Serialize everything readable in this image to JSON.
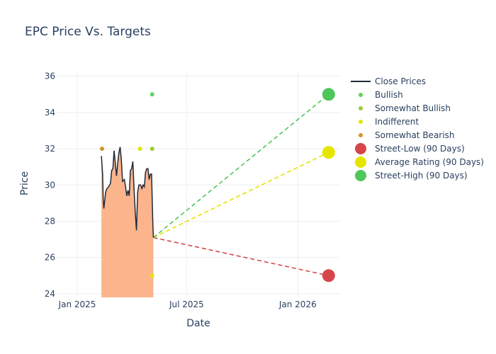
{
  "chart_data": {
    "type": "line",
    "title": "EPC Price Vs. Targets",
    "xlabel": "Date",
    "ylabel": "Price",
    "xlim": [
      "2024-11-28",
      "2026-03-12"
    ],
    "ylim": [
      23.8,
      36.3
    ],
    "x_ticks": [
      {
        "date": "2025-01-01",
        "label": "Jan 2025"
      },
      {
        "date": "2025-07-01",
        "label": "Jul 2025"
      },
      {
        "date": "2026-01-01",
        "label": "Jan 2026"
      }
    ],
    "y_ticks": [
      24,
      26,
      28,
      30,
      32,
      34,
      36
    ],
    "grid": true,
    "legend_position": "top-right",
    "close_prices": {
      "name": "Close Prices",
      "color": "#1f2a3a",
      "fill_color": "#fbb48c",
      "points": [
        [
          "2025-02-10",
          31.6
        ],
        [
          "2025-02-12",
          30.6
        ],
        [
          "2025-02-13",
          29.2
        ],
        [
          "2025-02-14",
          28.7
        ],
        [
          "2025-02-17",
          29.6
        ],
        [
          "2025-02-19",
          29.8
        ],
        [
          "2025-02-22",
          29.9
        ],
        [
          "2025-02-25",
          30.1
        ],
        [
          "2025-02-27",
          30.8
        ],
        [
          "2025-03-01",
          30.9
        ],
        [
          "2025-03-03",
          31.9
        ],
        [
          "2025-03-05",
          31.2
        ],
        [
          "2025-03-07",
          30.5
        ],
        [
          "2025-03-09",
          31.2
        ],
        [
          "2025-03-11",
          31.8
        ],
        [
          "2025-03-13",
          32.1
        ],
        [
          "2025-03-15",
          31.4
        ],
        [
          "2025-03-17",
          30.2
        ],
        [
          "2025-03-20",
          30.3
        ],
        [
          "2025-03-22",
          29.9
        ],
        [
          "2025-03-24",
          29.4
        ],
        [
          "2025-03-26",
          29.7
        ],
        [
          "2025-03-28",
          29.4
        ],
        [
          "2025-03-30",
          30.8
        ],
        [
          "2025-04-01",
          30.9
        ],
        [
          "2025-04-03",
          31.3
        ],
        [
          "2025-04-05",
          29.8
        ],
        [
          "2025-04-07",
          28.5
        ],
        [
          "2025-04-09",
          27.5
        ],
        [
          "2025-04-11",
          29.6
        ],
        [
          "2025-04-13",
          30.0
        ],
        [
          "2025-04-16",
          30.0
        ],
        [
          "2025-04-18",
          29.8
        ],
        [
          "2025-04-20",
          30.0
        ],
        [
          "2025-04-22",
          29.9
        ],
        [
          "2025-04-24",
          30.7
        ],
        [
          "2025-04-26",
          30.9
        ],
        [
          "2025-04-28",
          30.9
        ],
        [
          "2025-04-30",
          30.3
        ],
        [
          "2025-05-02",
          30.6
        ],
        [
          "2025-05-04",
          30.6
        ],
        [
          "2025-05-06",
          28.0
        ],
        [
          "2025-05-07",
          27.1
        ]
      ]
    },
    "ratings": [
      {
        "name": "Bullish",
        "color": "#5fd35f",
        "points": [
          [
            "2025-05-05",
            35.0
          ]
        ]
      },
      {
        "name": "Somewhat Bullish",
        "color": "#9acd32",
        "points": [
          [
            "2025-05-05",
            32.0
          ]
        ]
      },
      {
        "name": "Indifferent",
        "color": "#e5e500",
        "points": [
          [
            "2025-04-15",
            32.0
          ],
          [
            "2025-05-05",
            25.0
          ]
        ]
      },
      {
        "name": "Somewhat Bearish",
        "color": "#d4952a",
        "points": [
          [
            "2025-02-11",
            32.0
          ]
        ]
      }
    ],
    "targets": {
      "start": [
        "2025-05-07",
        27.1
      ],
      "end_date": "2026-02-21",
      "series": [
        {
          "name": "Street-Low (90 Days)",
          "color": "#d6454a",
          "value": 25.0
        },
        {
          "name": "Average Rating (90 Days)",
          "color": "#e5e500",
          "value": 31.8
        },
        {
          "name": "Street-High (90 Days)",
          "color": "#4fc65a",
          "value": 35.0
        }
      ]
    },
    "legend": [
      {
        "label": "Close Prices",
        "kind": "line",
        "color": "#1f2a3a"
      },
      {
        "label": "Bullish",
        "kind": "dot",
        "color": "#5fd35f"
      },
      {
        "label": "Somewhat Bullish",
        "kind": "dot",
        "color": "#9acd32"
      },
      {
        "label": "Indifferent",
        "kind": "dot",
        "color": "#e5e500"
      },
      {
        "label": "Somewhat Bearish",
        "kind": "dot",
        "color": "#d4952a"
      },
      {
        "label": "Street-Low (90 Days)",
        "kind": "big",
        "color": "#d6454a"
      },
      {
        "label": "Average Rating (90 Days)",
        "kind": "big",
        "color": "#e5e500"
      },
      {
        "label": "Street-High (90 Days)",
        "kind": "big",
        "color": "#4fc65a"
      }
    ]
  }
}
